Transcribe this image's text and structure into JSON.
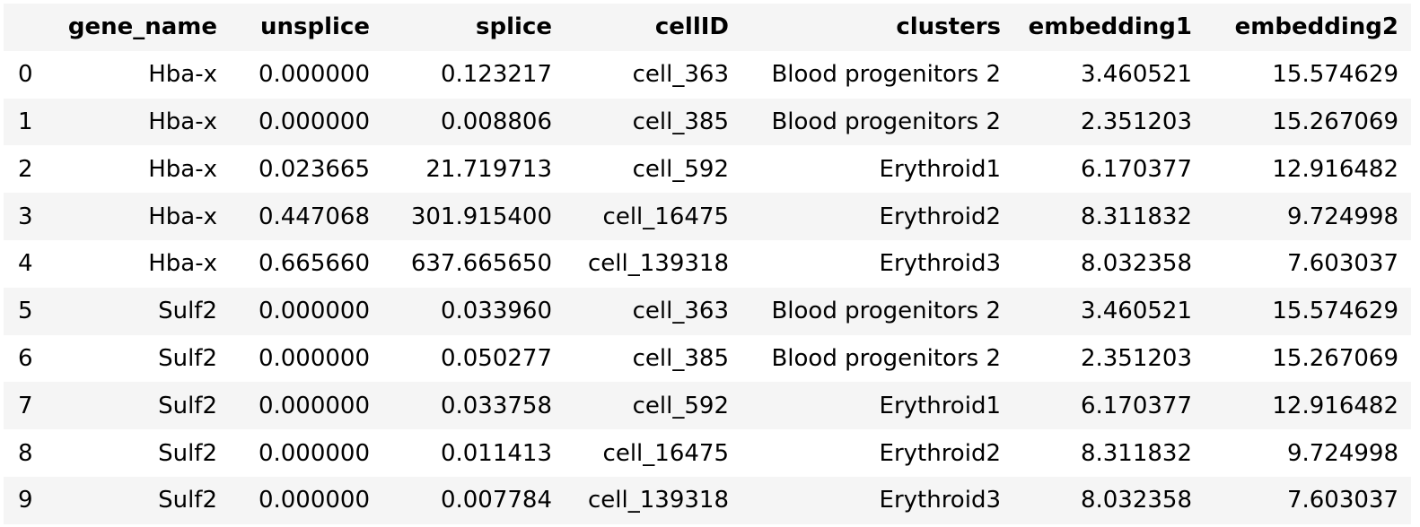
{
  "table": {
    "columns": [
      "",
      "gene_name",
      "unsplice",
      "splice",
      "cellID",
      "clusters",
      "embedding1",
      "embedding2"
    ],
    "rows": [
      [
        "0",
        "Hba-x",
        "0.000000",
        "0.123217",
        "cell_363",
        "Blood progenitors 2",
        "3.460521",
        "15.574629"
      ],
      [
        "1",
        "Hba-x",
        "0.000000",
        "0.008806",
        "cell_385",
        "Blood progenitors 2",
        "2.351203",
        "15.267069"
      ],
      [
        "2",
        "Hba-x",
        "0.023665",
        "21.719713",
        "cell_592",
        "Erythroid1",
        "6.170377",
        "12.916482"
      ],
      [
        "3",
        "Hba-x",
        "0.447068",
        "301.915400",
        "cell_16475",
        "Erythroid2",
        "8.311832",
        "9.724998"
      ],
      [
        "4",
        "Hba-x",
        "0.665660",
        "637.665650",
        "cell_139318",
        "Erythroid3",
        "8.032358",
        "7.603037"
      ],
      [
        "5",
        "Sulf2",
        "0.000000",
        "0.033960",
        "cell_363",
        "Blood progenitors 2",
        "3.460521",
        "15.574629"
      ],
      [
        "6",
        "Sulf2",
        "0.000000",
        "0.050277",
        "cell_385",
        "Blood progenitors 2",
        "2.351203",
        "15.267069"
      ],
      [
        "7",
        "Sulf2",
        "0.000000",
        "0.033758",
        "cell_592",
        "Erythroid1",
        "6.170377",
        "12.916482"
      ],
      [
        "8",
        "Sulf2",
        "0.000000",
        "0.011413",
        "cell_16475",
        "Erythroid2",
        "8.311832",
        "9.724998"
      ],
      [
        "9",
        "Sulf2",
        "0.000000",
        "0.007784",
        "cell_139318",
        "Erythroid3",
        "8.032358",
        "7.603037"
      ]
    ]
  },
  "colors": {
    "stripe": "#f5f5f5",
    "background": "#ffffff",
    "text": "#000000"
  }
}
